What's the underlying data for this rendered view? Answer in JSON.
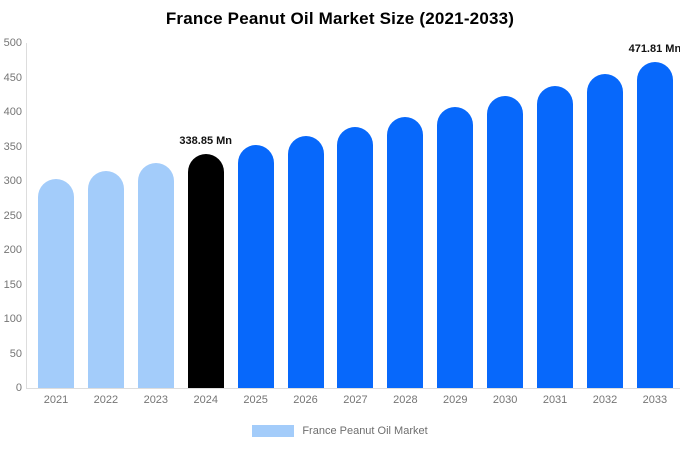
{
  "title": "France Peanut Oil Market Size (2021-2033)",
  "colors": {
    "historic_bar": "#a3ccfa",
    "base_year_bar": "#000000",
    "forecast_bar": "#0768fb",
    "axis_line": "#dddddd",
    "tick_text": "#757575",
    "value_label_text": "#111111",
    "background": "#ffffff"
  },
  "chart_data": {
    "type": "bar",
    "title": "France Peanut Oil Market Size (2021-2033)",
    "categories": [
      "2021",
      "2022",
      "2023",
      "2024",
      "2025",
      "2026",
      "2027",
      "2028",
      "2029",
      "2030",
      "2031",
      "2032",
      "2033"
    ],
    "values": [
      303.5,
      314.8,
      326.6,
      338.85,
      351.5,
      364.7,
      378.4,
      392.6,
      407.3,
      422.5,
      438.3,
      454.8,
      471.81
    ],
    "unit": "Mn",
    "xlabel": "",
    "ylabel": "",
    "ylim": [
      0,
      500
    ],
    "yticks": [
      0,
      50,
      100,
      150,
      200,
      250,
      300,
      350,
      400,
      450,
      500
    ],
    "grid": false,
    "legend_position": "bottom",
    "bar_colors": [
      "#a3ccfa",
      "#a3ccfa",
      "#a3ccfa",
      "#000000",
      "#0768fb",
      "#0768fb",
      "#0768fb",
      "#0768fb",
      "#0768fb",
      "#0768fb",
      "#0768fb",
      "#0768fb",
      "#0768fb"
    ],
    "annotations": [
      {
        "category_index": 3,
        "text": "338.85 Mn"
      },
      {
        "category_index": 12,
        "text": "471.81 Mn"
      }
    ]
  },
  "legend": {
    "items": [
      {
        "label": "France Peanut Oil Market",
        "swatch_color": "#a3ccfa"
      }
    ]
  }
}
